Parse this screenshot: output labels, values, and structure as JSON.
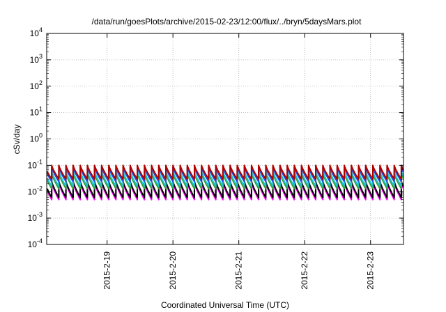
{
  "chart_data": {
    "type": "line",
    "title": "/data/run/goesPlots/archive/2015-02-23/12:00/flux/../bryn/5daysMars.plot",
    "xlabel": "Coordinated Universal Time (UTC)",
    "ylabel": "cSv/day",
    "yscale": "log",
    "ylim": [
      "1e-4",
      "1e4"
    ],
    "xlim": [
      "2015-02-18 02:00",
      "2015-02-23 12:00"
    ],
    "grid": true,
    "legend": "none",
    "y_ticks": [
      {
        "base": "10",
        "exp": "4"
      },
      {
        "base": "10",
        "exp": "3"
      },
      {
        "base": "10",
        "exp": "2"
      },
      {
        "base": "10",
        "exp": "1"
      },
      {
        "base": "10",
        "exp": "0"
      },
      {
        "base": "10",
        "exp": "-1"
      },
      {
        "base": "10",
        "exp": "-2"
      },
      {
        "base": "10",
        "exp": "-3"
      },
      {
        "base": "10",
        "exp": "-4"
      }
    ],
    "x_ticks": [
      "2015-2-19",
      "2015-2-20",
      "2015-2-21",
      "2015-2-22",
      "2015-2-23"
    ],
    "pattern": {
      "description_period_hours": 2.6,
      "peak_values": {
        "dark red": 0.1,
        "blue": 0.085,
        "cyan": 0.06,
        "green": 0.05,
        "black": 0.025,
        "magenta": 0.022
      },
      "trough_values": {
        "dark red": 0.03,
        "blue": 0.024,
        "cyan": 0.016,
        "green": 0.013,
        "black": 0.006,
        "magenta": 0.005
      }
    },
    "series": [
      {
        "color": "#b00000",
        "peak": 0.1,
        "trough": 0.03
      },
      {
        "color": "#2050e0",
        "peak": 0.085,
        "trough": 0.024
      },
      {
        "color": "#20c0d0",
        "peak": 0.06,
        "trough": 0.016
      },
      {
        "color": "#30a030",
        "peak": 0.05,
        "trough": 0.013
      },
      {
        "color": "#000000",
        "peak": 0.025,
        "trough": 0.006
      },
      {
        "color": "#ff00ff",
        "peak": 0.022,
        "trough": 0.005
      }
    ]
  }
}
